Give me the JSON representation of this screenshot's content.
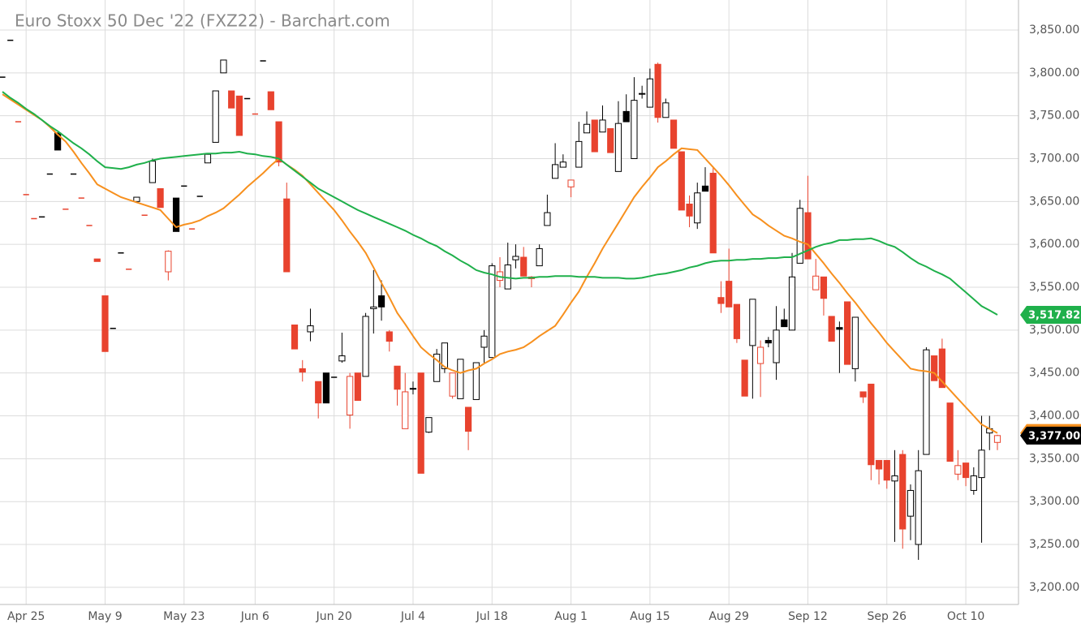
{
  "chart_data": {
    "type": "candlestick",
    "title": "Euro Stoxx 50 Dec '22 (FXZ22) - Barchart.com",
    "categories": [
      null,
      null,
      null,
      "Apr 25",
      null,
      null,
      null,
      null,
      null,
      null,
      null,
      null,
      null,
      "May 9",
      null,
      null,
      null,
      null,
      null,
      null,
      null,
      null,
      null,
      "May 23",
      null,
      null,
      null,
      null,
      null,
      null,
      null,
      null,
      "Jun 6",
      null,
      null,
      null,
      null,
      null,
      null,
      null,
      null,
      null,
      "Jun 20",
      null,
      null,
      null,
      null,
      null,
      null,
      null,
      null,
      null,
      "Jul 4",
      null,
      null,
      null,
      null,
      null,
      null,
      null,
      null,
      null,
      "Jul 18",
      null,
      null,
      null,
      null,
      null,
      null,
      null,
      null,
      null,
      "Aug 1",
      null,
      null,
      null,
      null,
      null,
      null,
      null,
      null,
      null,
      "Aug 15",
      null,
      null,
      null,
      null,
      null,
      null,
      null,
      null,
      null,
      "Aug 29",
      null,
      null,
      null,
      null,
      null,
      null,
      null,
      null,
      null,
      "Sep 12",
      null,
      null,
      null,
      null,
      null,
      null,
      null,
      null,
      null,
      "Sep 26",
      null,
      null,
      null,
      null,
      null,
      null,
      null,
      null,
      null,
      "Oct 10",
      null,
      null,
      null,
      null
    ],
    "open": [
      3795,
      3838,
      3743,
      3658,
      3630,
      3632,
      3682,
      3730,
      3641,
      3682,
      3654,
      3622,
      3583,
      3540,
      3502,
      3590,
      3571,
      3650,
      3634,
      3672,
      3665,
      3568,
      3654,
      3668,
      3618,
      3656,
      3695,
      3719,
      3800,
      3779,
      3773,
      3770,
      3752,
      3814,
      3778,
      3743,
      3653,
      3506,
      3455,
      3498,
      3440,
      3450,
      3445,
      3464,
      3401,
      3450,
      3446,
      3525,
      3540,
      3498,
      3458,
      3385,
      3432,
      3450,
      3381,
      3440,
      3455,
      3423,
      3420,
      3410,
      3419,
      3480,
      3468,
      3558,
      3548,
      3582,
      3585,
      3560,
      3575,
      3622,
      3677,
      3690,
      3667,
      3690,
      3730,
      3745,
      3731,
      3735,
      3685,
      3755,
      3700,
      3776,
      3760,
      3810,
      3748,
      3745,
      3708,
      3647,
      3625,
      3668,
      3683,
      3538,
      3557,
      3530,
      3465,
      3482,
      3461,
      3488,
      3462,
      3512,
      3500,
      3578,
      3637,
      3547,
      3562,
      3516,
      3503,
      3533,
      3455,
      3428,
      3437,
      3348,
      3348,
      3324,
      3355,
      3283,
      3250,
      3355,
      3470,
      3478,
      3415,
      3332,
      3345,
      3313,
      3328,
      3380,
      3369
    ],
    "high": [
      3795,
      3838,
      3743,
      3658,
      3630,
      3632,
      3682,
      3730,
      3641,
      3682,
      3654,
      3622,
      3583,
      3540,
      3502,
      3590,
      3571,
      3655,
      3634,
      3700,
      3665,
      3593,
      3654,
      3668,
      3618,
      3656,
      3705,
      3779,
      3815,
      3779,
      3773,
      3770,
      3752,
      3814,
      3778,
      3743,
      3672,
      3506,
      3465,
      3525,
      3440,
      3450,
      3445,
      3497,
      3450,
      3450,
      3520,
      3570,
      3558,
      3500,
      3458,
      3450,
      3440,
      3450,
      3398,
      3478,
      3485,
      3450,
      3466,
      3410,
      3462,
      3500,
      3578,
      3585,
      3602,
      3600,
      3597,
      3563,
      3600,
      3658,
      3718,
      3705,
      3675,
      3743,
      3755,
      3745,
      3762,
      3735,
      3767,
      3775,
      3795,
      3785,
      3805,
      3812,
      3770,
      3745,
      3708,
      3657,
      3672,
      3690,
      3690,
      3557,
      3595,
      3530,
      3465,
      3536,
      3488,
      3492,
      3528,
      3525,
      3590,
      3652,
      3680,
      3583,
      3562,
      3516,
      3510,
      3533,
      3515,
      3428,
      3437,
      3348,
      3348,
      3360,
      3360,
      3320,
      3360,
      3480,
      3470,
      3490,
      3415,
      3360,
      3345,
      3340,
      3400,
      3400,
      3378
    ],
    "low": [
      3795,
      3838,
      3743,
      3658,
      3630,
      3632,
      3682,
      3710,
      3641,
      3682,
      3654,
      3622,
      3580,
      3475,
      3502,
      3590,
      3571,
      3650,
      3634,
      3672,
      3643,
      3558,
      3615,
      3668,
      3618,
      3656,
      3695,
      3719,
      3800,
      3759,
      3727,
      3770,
      3752,
      3814,
      3757,
      3691,
      3568,
      3478,
      3440,
      3487,
      3397,
      3415,
      3445,
      3462,
      3385,
      3418,
      3446,
      3496,
      3511,
      3475,
      3412,
      3385,
      3425,
      3333,
      3380,
      3440,
      3450,
      3420,
      3420,
      3360,
      3419,
      3462,
      3468,
      3550,
      3548,
      3572,
      3563,
      3550,
      3575,
      3622,
      3677,
      3690,
      3655,
      3690,
      3730,
      3708,
      3731,
      3707,
      3685,
      3743,
      3700,
      3770,
      3760,
      3742,
      3748,
      3712,
      3640,
      3620,
      3618,
      3662,
      3590,
      3520,
      3527,
      3485,
      3423,
      3420,
      3422,
      3480,
      3442,
      3504,
      3500,
      3578,
      3583,
      3547,
      3517,
      3487,
      3450,
      3460,
      3440,
      3415,
      3325,
      3320,
      3315,
      3253,
      3245,
      3255,
      3232,
      3355,
      3441,
      3433,
      3347,
      3325,
      3318,
      3308,
      3252,
      3360,
      3360
    ],
    "close": [
      3795,
      3838,
      3743,
      3658,
      3630,
      3632,
      3682,
      3710,
      3641,
      3682,
      3654,
      3622,
      3580,
      3475,
      3502,
      3590,
      3571,
      3655,
      3634,
      3697,
      3643,
      3592,
      3615,
      3668,
      3618,
      3656,
      3705,
      3779,
      3815,
      3759,
      3727,
      3770,
      3752,
      3814,
      3757,
      3696,
      3568,
      3478,
      3451,
      3505,
      3415,
      3415,
      3445,
      3470,
      3446,
      3418,
      3516,
      3527,
      3527,
      3487,
      3431,
      3428,
      3432,
      3333,
      3398,
      3472,
      3485,
      3450,
      3466,
      3382,
      3462,
      3493,
      3575,
      3568,
      3576,
      3586,
      3563,
      3562,
      3595,
      3637,
      3693,
      3696,
      3675,
      3720,
      3740,
      3708,
      3745,
      3707,
      3741,
      3743,
      3768,
      3776,
      3793,
      3748,
      3765,
      3712,
      3640,
      3633,
      3660,
      3662,
      3590,
      3531,
      3527,
      3490,
      3423,
      3536,
      3480,
      3485,
      3500,
      3504,
      3562,
      3642,
      3583,
      3563,
      3537,
      3487,
      3501,
      3460,
      3515,
      3422,
      3343,
      3338,
      3325,
      3330,
      3268,
      3313,
      3336,
      3477,
      3441,
      3433,
      3347,
      3342,
      3328,
      3330,
      3360,
      3385,
      3377
    ],
    "up_color": "#000000",
    "down_color": "#e8432e",
    "overlays": [
      {
        "color": "#f7901e",
        "values": [
          3775,
          3769,
          3763,
          3757,
          3751,
          3745,
          3737,
          3728,
          3720,
          3708,
          3695,
          3683,
          3670,
          3665,
          3660,
          3655,
          3652,
          3649,
          3646,
          3643,
          3640,
          3630,
          3620,
          3623,
          3625,
          3628,
          3633,
          3637,
          3642,
          3650,
          3658,
          3667,
          3675,
          3683,
          3692,
          3700,
          3693,
          3687,
          3680,
          3670,
          3660,
          3650,
          3640,
          3628,
          3615,
          3603,
          3590,
          3573,
          3555,
          3538,
          3520,
          3507,
          3493,
          3480,
          3472,
          3465,
          3457,
          3453,
          3450,
          3453,
          3455,
          3461,
          3466,
          3472,
          3475,
          3477,
          3480,
          3486,
          3493,
          3499,
          3505,
          3518,
          3532,
          3545,
          3562,
          3578,
          3595,
          3610,
          3625,
          3640,
          3655,
          3667,
          3678,
          3690,
          3697,
          3705,
          3712,
          3711,
          3710,
          3700,
          3690,
          3680,
          3669,
          3657,
          3646,
          3635,
          3629,
          3622,
          3616,
          3610,
          3607,
          3603,
          3600,
          3589,
          3578,
          3566,
          3555,
          3543,
          3532,
          3520,
          3508,
          3497,
          3485,
          3475,
          3465,
          3455,
          3453,
          3452,
          3450,
          3440,
          3430,
          3420,
          3410,
          3400,
          3390,
          3385,
          3380
        ]
      },
      {
        "color": "#1fb04b",
        "values": [
          3778,
          3771,
          3765,
          3758,
          3752,
          3745,
          3738,
          3732,
          3725,
          3718,
          3712,
          3705,
          3697,
          3690,
          3689,
          3688,
          3690,
          3693,
          3695,
          3698,
          3700,
          3701,
          3702,
          3703,
          3704,
          3705,
          3706,
          3706,
          3707,
          3707,
          3708,
          3706,
          3705,
          3703,
          3702,
          3700,
          3693,
          3686,
          3679,
          3672,
          3665,
          3660,
          3655,
          3650,
          3645,
          3640,
          3636,
          3632,
          3628,
          3624,
          3620,
          3616,
          3611,
          3607,
          3602,
          3598,
          3592,
          3587,
          3581,
          3576,
          3570,
          3567,
          3565,
          3562,
          3561,
          3560,
          3561,
          3561,
          3562,
          3562,
          3563,
          3563,
          3563,
          3562,
          3562,
          3562,
          3561,
          3561,
          3561,
          3560,
          3560,
          3561,
          3563,
          3565,
          3566,
          3568,
          3570,
          3573,
          3575,
          3578,
          3580,
          3581,
          3581,
          3582,
          3582,
          3583,
          3583,
          3584,
          3584,
          3585,
          3585,
          3589,
          3593,
          3597,
          3600,
          3602,
          3605,
          3605,
          3606,
          3606,
          3607,
          3604,
          3600,
          3597,
          3591,
          3584,
          3578,
          3574,
          3569,
          3565,
          3560,
          3552,
          3544,
          3536,
          3528,
          3523,
          3517.82
        ],
        "end_label": {
          "value": 3517.82,
          "label": "3,517.82"
        }
      }
    ],
    "last_price": {
      "value": 3377,
      "label": "3,377.00"
    },
    "ylim": [
      3180,
      3885
    ],
    "yticks": [
      {
        "value": 3200,
        "label": "3,200.00"
      },
      {
        "value": 3250,
        "label": "3,250.00"
      },
      {
        "value": 3300,
        "label": "3,300.00"
      },
      {
        "value": 3350,
        "label": "3,350.00"
      },
      {
        "value": 3400,
        "label": "3,400.00"
      },
      {
        "value": 3450,
        "label": "3,450.00"
      },
      {
        "value": 3500,
        "label": "3,500.00"
      },
      {
        "value": 3550,
        "label": "3,550.00"
      },
      {
        "value": 3600,
        "label": "3,600.00"
      },
      {
        "value": 3650,
        "label": "3,650.00"
      },
      {
        "value": 3700,
        "label": "3,700.00"
      },
      {
        "value": 3750,
        "label": "3,750.00"
      },
      {
        "value": 3800,
        "label": "3,800.00"
      },
      {
        "value": 3850,
        "label": "3,850.00"
      }
    ],
    "grid": true
  }
}
